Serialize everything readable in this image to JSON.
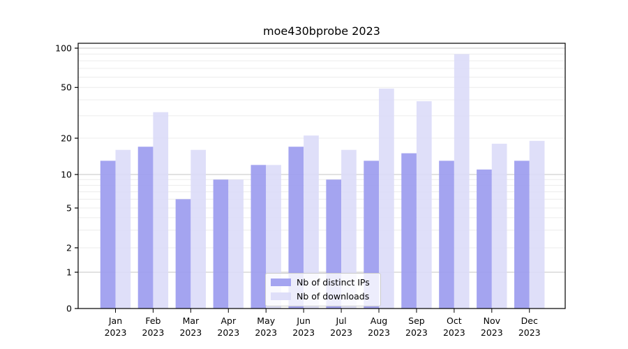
{
  "title": "moe430bprobe 2023",
  "chart_data": {
    "type": "bar",
    "title": "moe430bprobe 2023",
    "categories": [
      "Jan",
      "Feb",
      "Mar",
      "Apr",
      "May",
      "Jun",
      "Jul",
      "Aug",
      "Sep",
      "Oct",
      "Nov",
      "Dec"
    ],
    "year": "2023",
    "series": [
      {
        "name": "Nb of distinct IPs",
        "color": "#9f9fef",
        "values": [
          13,
          17,
          6,
          9,
          12,
          17,
          9,
          13,
          15,
          13,
          11,
          13
        ]
      },
      {
        "name": "Nb of downloads",
        "color": "#dbdbf8",
        "values": [
          16,
          32,
          16,
          9,
          12,
          21,
          16,
          49,
          39,
          90,
          18,
          19
        ]
      }
    ],
    "yscale": "symlog",
    "yticks": [
      0,
      1,
      2,
      5,
      10,
      20,
      50,
      100
    ],
    "ylim": [
      0,
      103
    ],
    "grid_major": [
      1,
      10,
      100
    ],
    "grid_minor": [
      2,
      3,
      4,
      5,
      6,
      7,
      8,
      9,
      20,
      30,
      40,
      50,
      60,
      70,
      80,
      90
    ],
    "legend_position": "lower center",
    "xlabel": "",
    "ylabel": ""
  },
  "colors": {
    "grid_major": "#c4c4c4",
    "grid_minor": "#ececec",
    "axis": "#000000",
    "background": "#ffffff"
  }
}
